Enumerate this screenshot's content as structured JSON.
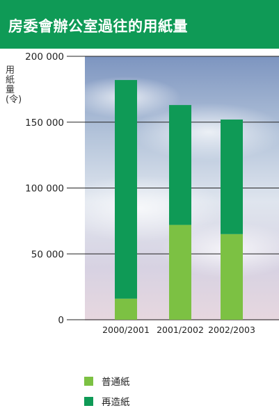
{
  "title": "房委會辦公室過往的用紙量",
  "colors": {
    "header": "#0f9a56",
    "series": [
      "#7cc143",
      "#0f9a56"
    ]
  },
  "chart_data": {
    "type": "bar",
    "stacked": true,
    "ylabel": "用紙量(令)",
    "categories": [
      "2000/2001",
      "2001/2002",
      "2002/2003"
    ],
    "series": [
      {
        "name": "再造紙",
        "values": [
          16000,
          72000,
          65000
        ]
      },
      {
        "name": "普通紙",
        "values": [
          166000,
          91000,
          87000
        ]
      }
    ],
    "ylim": [
      0,
      200000
    ],
    "yticks": [
      0,
      50000,
      100000,
      150000,
      200000
    ],
    "ytick_labels": [
      "0",
      "50 000",
      "100 000",
      "150 000",
      "200 000"
    ],
    "grid": true,
    "legend": "bottom-left"
  },
  "legend": [
    {
      "label": "普通紙"
    },
    {
      "label": "再造紙"
    }
  ]
}
